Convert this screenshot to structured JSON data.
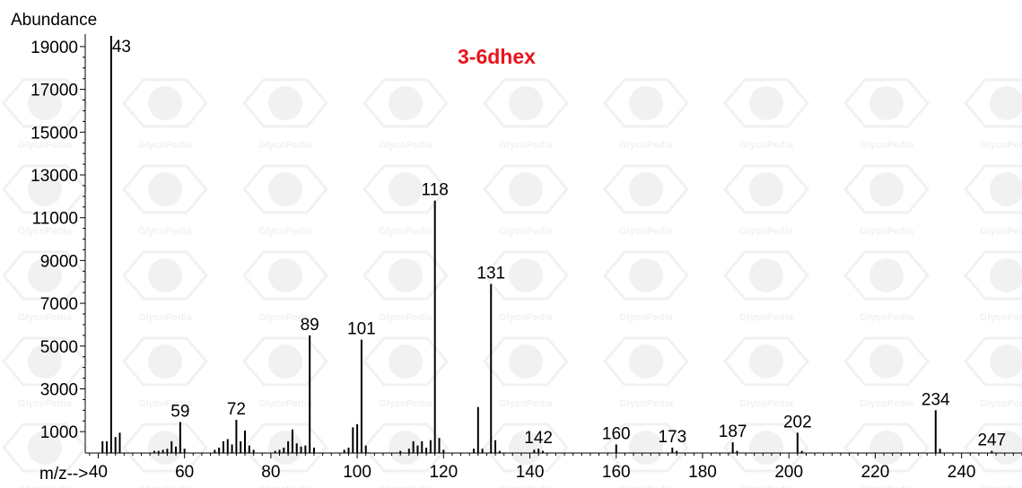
{
  "chart_data": {
    "type": "bar",
    "title": "3-6dhex",
    "ylabel": "Abundance",
    "xlabel_prefix": "m/z-->",
    "watermark_text": "GlycoPedia",
    "colors": {
      "title": "#e8141b",
      "bars": "#000000",
      "axis": "#000000",
      "watermark": "#f1f1f1"
    },
    "xlim": [
      37,
      254
    ],
    "ylim": [
      0,
      19500
    ],
    "x_ticks": [
      40,
      60,
      80,
      100,
      120,
      140,
      160,
      180,
      200,
      220,
      240
    ],
    "y_ticks": [
      1000,
      3000,
      5000,
      7000,
      9000,
      11000,
      13000,
      15000,
      17000,
      19000
    ],
    "peaks": [
      {
        "mz": 41,
        "abundance": 550
      },
      {
        "mz": 42,
        "abundance": 550
      },
      {
        "mz": 43,
        "abundance": 19500,
        "label": "43"
      },
      {
        "mz": 44,
        "abundance": 750
      },
      {
        "mz": 45,
        "abundance": 950
      },
      {
        "mz": 53,
        "abundance": 100
      },
      {
        "mz": 54,
        "abundance": 100
      },
      {
        "mz": 55,
        "abundance": 150
      },
      {
        "mz": 56,
        "abundance": 200
      },
      {
        "mz": 57,
        "abundance": 550
      },
      {
        "mz": 58,
        "abundance": 300
      },
      {
        "mz": 59,
        "abundance": 1450,
        "label": "59"
      },
      {
        "mz": 60,
        "abundance": 200
      },
      {
        "mz": 67,
        "abundance": 150
      },
      {
        "mz": 68,
        "abundance": 250
      },
      {
        "mz": 69,
        "abundance": 550
      },
      {
        "mz": 70,
        "abundance": 650
      },
      {
        "mz": 71,
        "abundance": 400
      },
      {
        "mz": 72,
        "abundance": 1550,
        "label": "72"
      },
      {
        "mz": 73,
        "abundance": 550
      },
      {
        "mz": 74,
        "abundance": 1050
      },
      {
        "mz": 75,
        "abundance": 350
      },
      {
        "mz": 76,
        "abundance": 150
      },
      {
        "mz": 81,
        "abundance": 100
      },
      {
        "mz": 82,
        "abundance": 150
      },
      {
        "mz": 83,
        "abundance": 250
      },
      {
        "mz": 84,
        "abundance": 550
      },
      {
        "mz": 85,
        "abundance": 1100
      },
      {
        "mz": 86,
        "abundance": 450
      },
      {
        "mz": 87,
        "abundance": 300
      },
      {
        "mz": 88,
        "abundance": 350
      },
      {
        "mz": 89,
        "abundance": 5500,
        "label": "89"
      },
      {
        "mz": 90,
        "abundance": 250
      },
      {
        "mz": 97,
        "abundance": 150
      },
      {
        "mz": 98,
        "abundance": 250
      },
      {
        "mz": 99,
        "abundance": 1200
      },
      {
        "mz": 100,
        "abundance": 1350
      },
      {
        "mz": 101,
        "abundance": 5300,
        "label": "101"
      },
      {
        "mz": 102,
        "abundance": 350
      },
      {
        "mz": 110,
        "abundance": 100
      },
      {
        "mz": 112,
        "abundance": 200
      },
      {
        "mz": 113,
        "abundance": 550
      },
      {
        "mz": 114,
        "abundance": 350
      },
      {
        "mz": 115,
        "abundance": 550
      },
      {
        "mz": 116,
        "abundance": 250
      },
      {
        "mz": 117,
        "abundance": 600
      },
      {
        "mz": 118,
        "abundance": 11800,
        "label": "118"
      },
      {
        "mz": 119,
        "abundance": 700
      },
      {
        "mz": 120,
        "abundance": 150
      },
      {
        "mz": 127,
        "abundance": 200
      },
      {
        "mz": 128,
        "abundance": 2150
      },
      {
        "mz": 129,
        "abundance": 200
      },
      {
        "mz": 131,
        "abundance": 7900,
        "label": "131"
      },
      {
        "mz": 132,
        "abundance": 600
      },
      {
        "mz": 133,
        "abundance": 100
      },
      {
        "mz": 141,
        "abundance": 150
      },
      {
        "mz": 142,
        "abundance": 200,
        "label": "142"
      },
      {
        "mz": 143,
        "abundance": 100
      },
      {
        "mz": 160,
        "abundance": 400,
        "label": "160"
      },
      {
        "mz": 173,
        "abundance": 250,
        "label": "173"
      },
      {
        "mz": 174,
        "abundance": 100
      },
      {
        "mz": 187,
        "abundance": 500,
        "label": "187"
      },
      {
        "mz": 188,
        "abundance": 100
      },
      {
        "mz": 202,
        "abundance": 950,
        "label": "202"
      },
      {
        "mz": 203,
        "abundance": 100
      },
      {
        "mz": 234,
        "abundance": 2000,
        "label": "234"
      },
      {
        "mz": 235,
        "abundance": 200
      },
      {
        "mz": 247,
        "abundance": 100,
        "label": "247"
      }
    ]
  }
}
